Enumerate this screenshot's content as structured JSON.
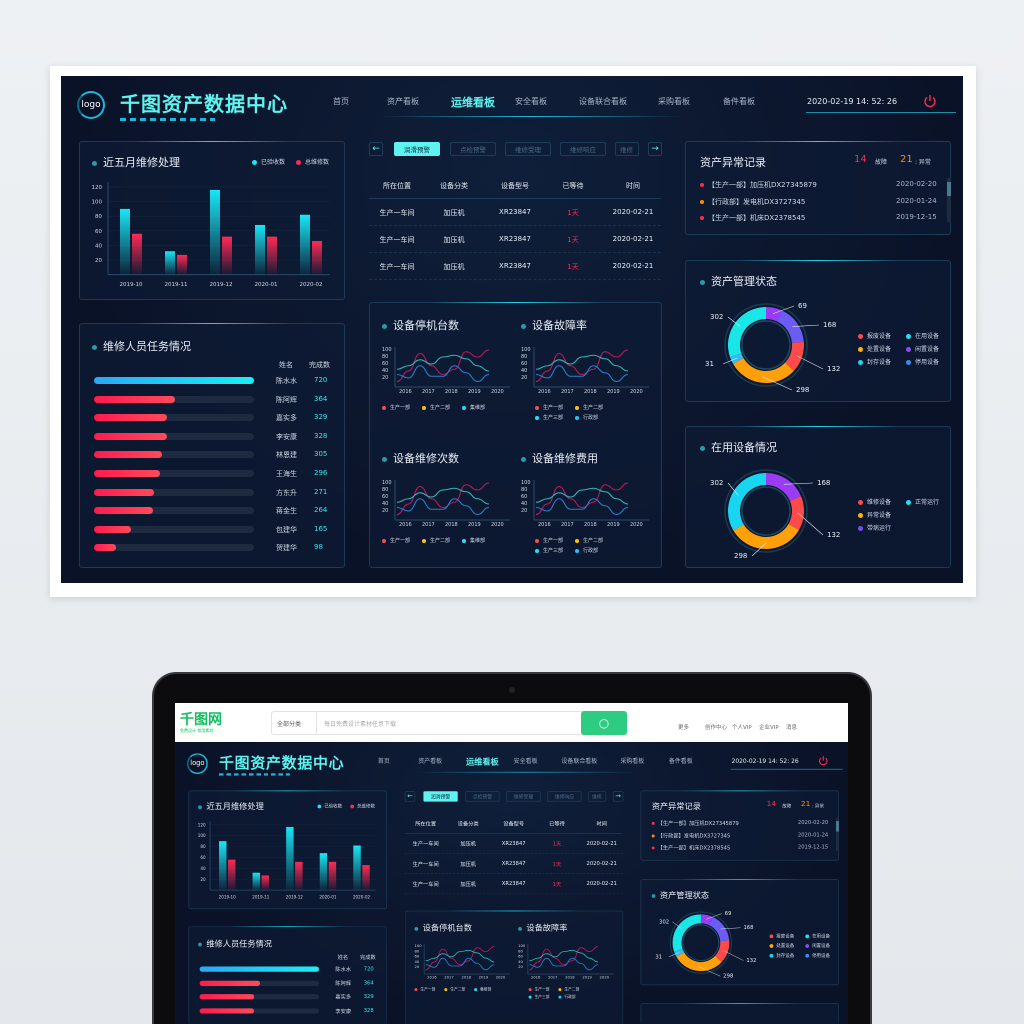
{
  "header": {
    "logo": "logo",
    "title": "千图资产数据中心",
    "datetime": "2020-02-19 14: 52: 26",
    "nav": [
      {
        "label": "首页"
      },
      {
        "label": "资产看板"
      },
      {
        "label": "运维看板",
        "active": true
      },
      {
        "label": "安全看板"
      },
      {
        "label": "设备联合看板"
      },
      {
        "label": "采购看板"
      },
      {
        "label": "备件看板"
      }
    ]
  },
  "repair_chart": {
    "title": "近五月维修处理",
    "chart_data": {
      "type": "bar",
      "categories": [
        "2019-10",
        "2019-11",
        "2019-12",
        "2020-01",
        "2020-02"
      ],
      "series": [
        {
          "name": "已验收数",
          "color": "#19e6f5",
          "values": [
            90,
            32,
            116,
            68,
            82
          ]
        },
        {
          "name": "总维修数",
          "color": "#ff2a55",
          "values": [
            56,
            27,
            52,
            52,
            46
          ]
        }
      ],
      "yticks": [
        20,
        40,
        60,
        80,
        100,
        120
      ],
      "ylim": [
        0,
        120
      ]
    }
  },
  "staff": {
    "title": "维修人员任务情况",
    "col_name": "姓名",
    "col_count": "完成数",
    "rows": [
      {
        "name": "陈水水",
        "count": "720",
        "value": 720
      },
      {
        "name": "陈阿辉",
        "count": "364",
        "value": 364
      },
      {
        "name": "嘉实多",
        "count": "329",
        "value": 329
      },
      {
        "name": "李安康",
        "count": "328",
        "value": 328
      },
      {
        "name": "林恩建",
        "count": "305",
        "value": 305
      },
      {
        "name": "王海生",
        "count": "296",
        "value": 296
      },
      {
        "name": "方东升",
        "count": "271",
        "value": 271
      },
      {
        "name": "蒋金生",
        "count": "264",
        "value": 264
      },
      {
        "name": "包建华",
        "count": "165",
        "value": 165
      },
      {
        "name": "贺建华",
        "count": "98",
        "value": 98
      }
    ]
  },
  "warning": {
    "tabs": [
      "润滑预警",
      "点检预警",
      "维修受理",
      "维修响应",
      "维修"
    ],
    "columns": [
      "所在位置",
      "设备分类",
      "设备型号",
      "已等待",
      "时间"
    ],
    "rows": [
      [
        "生产一车间",
        "加压机",
        "XR23847",
        "1天",
        "2020-02-21"
      ],
      [
        "生产一车间",
        "加压机",
        "XR23847",
        "1天",
        "2020-02-21"
      ],
      [
        "生产一车间",
        "加压机",
        "XR23847",
        "1天",
        "2020-02-21"
      ]
    ]
  },
  "line_charts": {
    "x": [
      2016,
      2016.5,
      2017,
      2017.5,
      2018,
      2018.5,
      2019,
      2019.5,
      2020
    ],
    "xticks": [
      2016,
      2017,
      2018,
      2019,
      2020
    ],
    "yticks": [
      20,
      40,
      60,
      80,
      100
    ],
    "lines": [
      {
        "color": "#c2185b",
        "values": [
          10,
          40,
          90,
          55,
          30,
          45,
          95,
          80,
          100
        ]
      },
      {
        "color": "#2fb8b8",
        "values": [
          45,
          55,
          72,
          60,
          80,
          85,
          75,
          55,
          40
        ]
      },
      {
        "color": "#2a7fc9",
        "values": [
          30,
          20,
          55,
          25,
          25,
          55,
          35,
          10,
          30
        ]
      }
    ],
    "charts": [
      {
        "title": "设备停机台数",
        "legend": [
          {
            "name": "生产一部",
            "color": "#ff4a4a"
          },
          {
            "name": "生产二部",
            "color": "#ffc107"
          },
          {
            "name": "集维部",
            "color": "#19e6f5"
          }
        ]
      },
      {
        "title": "设备故障率",
        "legend": [
          {
            "name": "生产一部",
            "color": "#ff4a4a"
          },
          {
            "name": "生产二部",
            "color": "#ffc107"
          },
          {
            "name": "生产三部",
            "color": "#19e6f5"
          },
          {
            "name": "行政部",
            "color": "#19c8f5"
          }
        ]
      },
      {
        "title": "设备维修次数",
        "legend": [
          {
            "name": "生产一部",
            "color": "#ff4a4a"
          },
          {
            "name": "生产二部",
            "color": "#ffc107"
          },
          {
            "name": "集维部",
            "color": "#19e6f5"
          }
        ]
      },
      {
        "title": "设备维修费用",
        "legend": [
          {
            "name": "生产一部",
            "color": "#ff4a4a"
          },
          {
            "name": "生产二部",
            "color": "#ffc107"
          },
          {
            "name": "生产三部",
            "color": "#19e6f5"
          },
          {
            "name": "行政部",
            "color": "#19c8f5"
          }
        ]
      }
    ]
  },
  "anomaly": {
    "title": "资产异常记录",
    "fault_count": "14",
    "fault_label": "故障",
    "abnormal_count": "21",
    "abnormal_label": ": 异常",
    "items": [
      {
        "text": "【生产一部】加压机DX27345879",
        "date": "2020-02-20",
        "color": "#ff2a55"
      },
      {
        "text": "【行政部】发电机DX3727345",
        "date": "2020-01-24",
        "color": "#ff8a00"
      },
      {
        "text": "【生产一部】机床DX2378545",
        "date": "2019-12-15",
        "color": "#ff2a55"
      }
    ]
  },
  "asset_status": {
    "title": "资产管理状态",
    "chart_data": {
      "type": "pie",
      "values": [
        69,
        168,
        132,
        298,
        31,
        302
      ],
      "labels": [
        "69",
        "168",
        "132",
        "298",
        "31",
        "302"
      ],
      "colors": [
        "#9b3cf5",
        "#6a5cf5",
        "#ff4a4a",
        "#ffa00a",
        "#3ab8f5",
        "#19e6e6"
      ]
    },
    "legend": [
      {
        "name": "报废设备",
        "color": "#ff4a4a"
      },
      {
        "name": "在用设备",
        "color": "#19e6f5"
      },
      {
        "name": "处置设备",
        "color": "#ffb300"
      },
      {
        "name": "闲置设备",
        "color": "#8a4cf5"
      },
      {
        "name": "封存设备",
        "color": "#19d6f5"
      },
      {
        "name": "停用设备",
        "color": "#3a8cf5"
      }
    ]
  },
  "in_use": {
    "title": "在用设备情况",
    "chart_data": {
      "type": "pie",
      "values": [
        168,
        132,
        298,
        302
      ],
      "labels": [
        "168",
        "132",
        "298",
        "302"
      ],
      "colors": [
        "#9b3cf5",
        "#ff4a4a",
        "#ffa00a",
        "#19d6f0"
      ]
    },
    "legend": [
      {
        "name": "维修设备",
        "color": "#ff4a4a"
      },
      {
        "name": "正常运行",
        "color": "#19e6f5"
      },
      {
        "name": "异常设备",
        "color": "#ffb300"
      },
      {
        "name": "带病运行",
        "color": "#7a4cf5"
      }
    ]
  },
  "site": {
    "logo": "千图网",
    "slogan": "免费设计 常用素材",
    "category": "全部分类",
    "search_placeholder": "每日免费设计素材任意下载",
    "links": [
      "更多",
      "创作中心",
      "个人VIP",
      "企业VIP",
      "消息"
    ]
  }
}
